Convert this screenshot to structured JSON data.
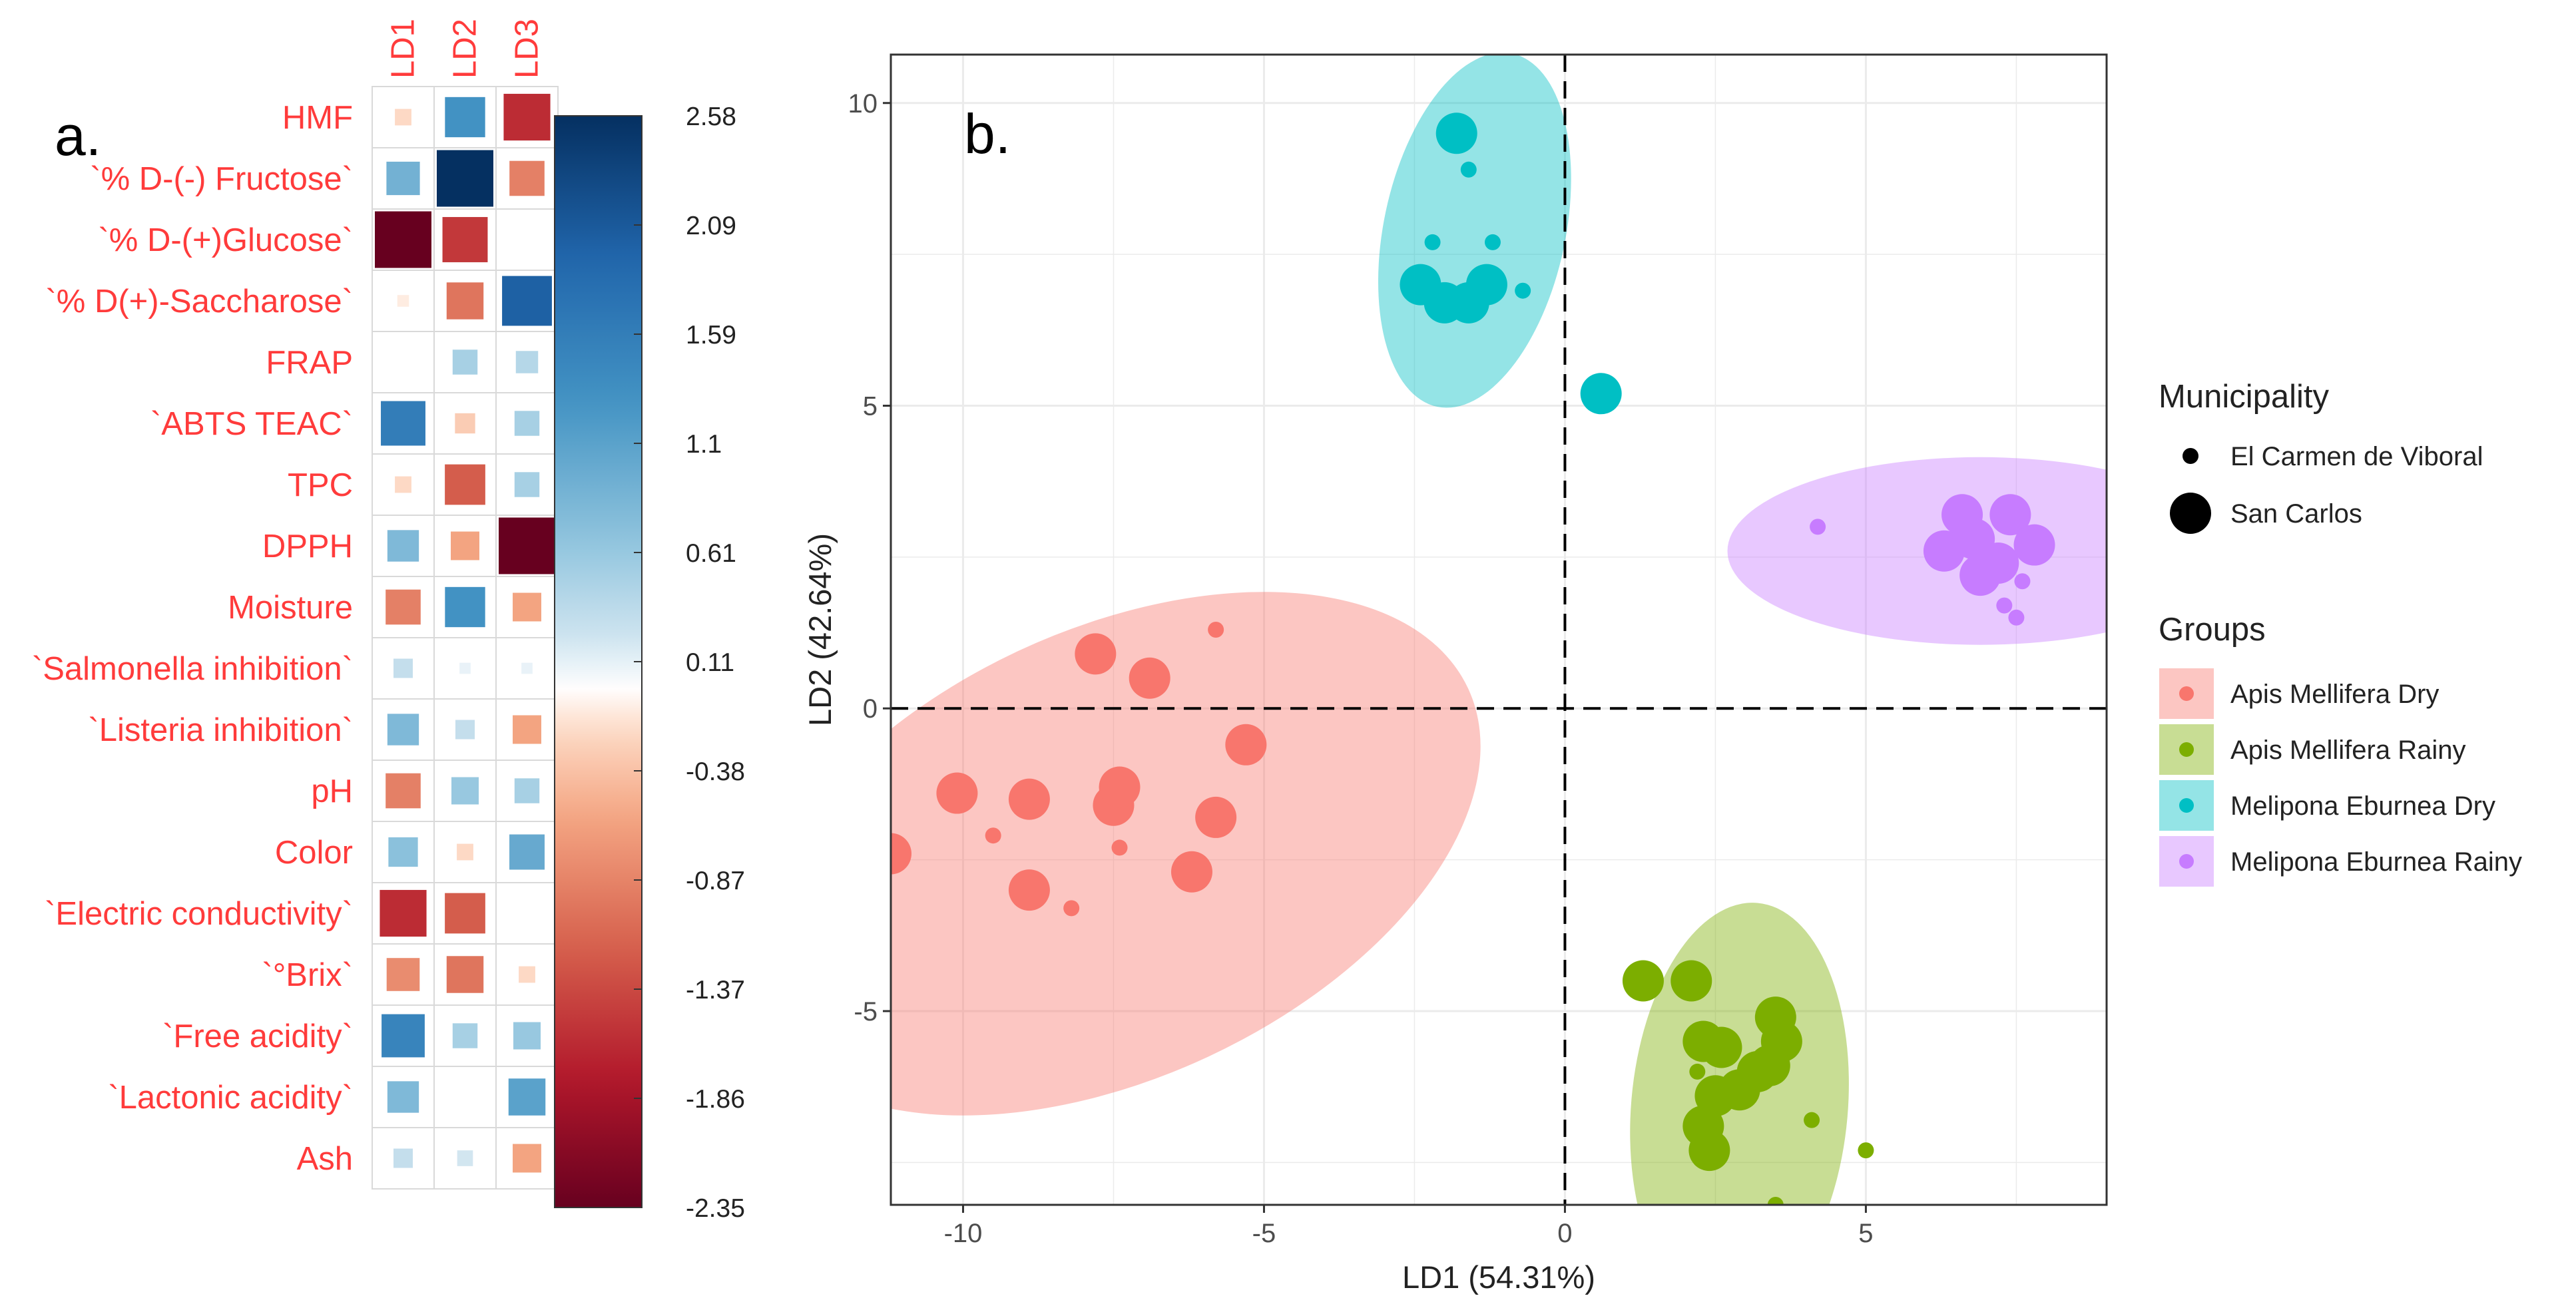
{
  "chart_data": [
    {
      "type": "heatmap",
      "panel_label": "a.",
      "columns": [
        "LD1",
        "LD2",
        "LD3"
      ],
      "rows": [
        "HMF",
        "`% D-(-) Fructose`",
        "`% D-(+)Glucose`",
        "`% D(+)-Saccharose`",
        "FRAP",
        "`ABTS TEAC`",
        "TPC",
        "DPPH",
        "Moisture",
        "`Salmonella inhibition`",
        "`Listeria inhibition`",
        "pH",
        "Color",
        "`Electric conductivity`",
        "`°Brix`",
        "`Free acidity`",
        "`Lactonic acidity`",
        "Ash"
      ],
      "values": [
        [
          -0.2,
          1.3,
          -1.6
        ],
        [
          0.9,
          2.58,
          -0.9
        ],
        [
          -2.35,
          -1.5,
          0.0
        ],
        [
          -0.1,
          -1.0,
          2.0
        ],
        [
          0.0,
          0.5,
          0.4
        ],
        [
          1.6,
          -0.3,
          0.5
        ],
        [
          -0.2,
          -1.2,
          0.5
        ],
        [
          0.8,
          -0.6,
          -2.35
        ],
        [
          -0.9,
          1.3,
          -0.6
        ],
        [
          0.3,
          0.1,
          0.1
        ],
        [
          0.8,
          0.3,
          -0.6
        ],
        [
          -0.9,
          0.6,
          0.5
        ],
        [
          0.7,
          -0.2,
          1.0
        ],
        [
          -1.6,
          -1.2,
          0.0
        ],
        [
          -0.8,
          -1.0,
          -0.2
        ],
        [
          1.5,
          0.5,
          0.6
        ],
        [
          0.8,
          0.0,
          1.1
        ],
        [
          0.3,
          0.2,
          -0.6
        ]
      ],
      "colorbar_ticks": [
        "2.58",
        "2.09",
        "1.59",
        "1.1",
        "0.61",
        "0.11",
        "-0.38",
        "-0.87",
        "-1.37",
        "-1.86",
        "-2.35"
      ],
      "scale_range": [
        -2.35,
        2.58
      ]
    },
    {
      "type": "scatter",
      "panel_label": "b.",
      "xlabel": "LD1 (54.31%)",
      "ylabel": "LD2 (42.64%)",
      "xlim": [
        -11.2,
        9.0
      ],
      "ylim": [
        -8.2,
        10.8
      ],
      "xticks": [
        -10,
        -5,
        0,
        5
      ],
      "yticks": [
        -5,
        0,
        5,
        10
      ],
      "grid": true,
      "reference_lines": {
        "x": 0,
        "y": 0
      },
      "legend_placement": "right",
      "municipality_legend": {
        "title": "Municipality",
        "items": [
          {
            "label": "El Carmen de Viboral",
            "size": "small"
          },
          {
            "label": "San Carlos",
            "size": "large"
          }
        ]
      },
      "groups_legend": {
        "title": "Groups",
        "items": [
          {
            "label": "Apis Mellifera Dry",
            "color": "#F8766D"
          },
          {
            "label": "Apis Mellifera Rainy",
            "color": "#7CAE00"
          },
          {
            "label": "Melipona Eburnea Dry",
            "color": "#00BFC4"
          },
          {
            "label": "Melipona Eburnea Rainy",
            "color": "#C77CFF"
          }
        ]
      },
      "series": [
        {
          "name": "Apis Mellifera Dry",
          "color": "#F8766D",
          "ellipse": {
            "cx": -7.5,
            "cy": -2.4,
            "rx": 6.5,
            "ry": 3.7,
            "angle_deg": -25
          },
          "points": [
            {
              "x": -11.2,
              "y": -2.4,
              "municipality": "San Carlos"
            },
            {
              "x": -10.1,
              "y": -1.4,
              "municipality": "San Carlos"
            },
            {
              "x": -9.5,
              "y": -2.1,
              "municipality": "El Carmen de Viboral"
            },
            {
              "x": -8.9,
              "y": -1.5,
              "municipality": "San Carlos"
            },
            {
              "x": -8.9,
              "y": -3.0,
              "municipality": "San Carlos"
            },
            {
              "x": -8.2,
              "y": -3.3,
              "municipality": "El Carmen de Viboral"
            },
            {
              "x": -7.8,
              "y": 0.9,
              "municipality": "San Carlos"
            },
            {
              "x": -7.5,
              "y": -1.6,
              "municipality": "San Carlos"
            },
            {
              "x": -7.4,
              "y": -1.3,
              "municipality": "San Carlos"
            },
            {
              "x": -7.4,
              "y": -2.3,
              "municipality": "El Carmen de Viboral"
            },
            {
              "x": -6.9,
              "y": 0.5,
              "municipality": "San Carlos"
            },
            {
              "x": -6.2,
              "y": -2.7,
              "municipality": "San Carlos"
            },
            {
              "x": -5.8,
              "y": -1.8,
              "municipality": "San Carlos"
            },
            {
              "x": -5.8,
              "y": 1.3,
              "municipality": "El Carmen de Viboral"
            },
            {
              "x": -5.3,
              "y": -0.6,
              "municipality": "San Carlos"
            }
          ]
        },
        {
          "name": "Apis Mellifera Rainy",
          "color": "#7CAE00",
          "ellipse": {
            "cx": 2.9,
            "cy": -6.6,
            "rx": 1.8,
            "ry": 3.4,
            "angle_deg": 5
          },
          "points": [
            {
              "x": 1.3,
              "y": -4.5,
              "municipality": "San Carlos"
            },
            {
              "x": 2.1,
              "y": -4.5,
              "municipality": "San Carlos"
            },
            {
              "x": 2.3,
              "y": -5.5,
              "municipality": "San Carlos"
            },
            {
              "x": 2.6,
              "y": -5.6,
              "municipality": "San Carlos"
            },
            {
              "x": 2.2,
              "y": -6.0,
              "municipality": "El Carmen de Viboral"
            },
            {
              "x": 2.5,
              "y": -6.4,
              "municipality": "San Carlos"
            },
            {
              "x": 2.9,
              "y": -6.3,
              "municipality": "San Carlos"
            },
            {
              "x": 2.3,
              "y": -6.9,
              "municipality": "San Carlos"
            },
            {
              "x": 2.4,
              "y": -7.3,
              "municipality": "San Carlos"
            },
            {
              "x": 3.2,
              "y": -6.0,
              "municipality": "San Carlos"
            },
            {
              "x": 3.5,
              "y": -5.1,
              "municipality": "San Carlos"
            },
            {
              "x": 3.6,
              "y": -5.5,
              "municipality": "San Carlos"
            },
            {
              "x": 3.4,
              "y": -5.9,
              "municipality": "San Carlos"
            },
            {
              "x": 4.1,
              "y": -6.8,
              "municipality": "El Carmen de Viboral"
            },
            {
              "x": 5.0,
              "y": -7.3,
              "municipality": "El Carmen de Viboral"
            },
            {
              "x": 3.5,
              "y": -8.2,
              "municipality": "El Carmen de Viboral"
            }
          ]
        },
        {
          "name": "Melipona Eburnea Dry",
          "color": "#00BFC4",
          "ellipse": {
            "cx": -1.5,
            "cy": 7.9,
            "rx": 3.0,
            "ry": 1.5,
            "angle_deg": -78
          },
          "points": [
            {
              "x": -1.8,
              "y": 9.5,
              "municipality": "San Carlos"
            },
            {
              "x": -1.6,
              "y": 8.9,
              "municipality": "El Carmen de Viboral"
            },
            {
              "x": -2.2,
              "y": 7.7,
              "municipality": "El Carmen de Viboral"
            },
            {
              "x": -1.2,
              "y": 7.7,
              "municipality": "El Carmen de Viboral"
            },
            {
              "x": -2.4,
              "y": 7.0,
              "municipality": "San Carlos"
            },
            {
              "x": -2.0,
              "y": 6.7,
              "municipality": "San Carlos"
            },
            {
              "x": -1.6,
              "y": 6.7,
              "municipality": "San Carlos"
            },
            {
              "x": -1.3,
              "y": 7.0,
              "municipality": "San Carlos"
            },
            {
              "x": -0.7,
              "y": 6.9,
              "municipality": "El Carmen de Viboral"
            },
            {
              "x": 0.6,
              "y": 5.2,
              "municipality": "San Carlos"
            }
          ]
        },
        {
          "name": "Melipona Eburnea Rainy",
          "color": "#C77CFF",
          "ellipse": {
            "cx": 6.9,
            "cy": 2.6,
            "rx": 4.2,
            "ry": 1.55,
            "angle_deg": 0
          },
          "points": [
            {
              "x": 4.2,
              "y": 3.0,
              "municipality": "El Carmen de Viboral"
            },
            {
              "x": 6.6,
              "y": 3.2,
              "municipality": "San Carlos"
            },
            {
              "x": 7.4,
              "y": 3.2,
              "municipality": "San Carlos"
            },
            {
              "x": 6.3,
              "y": 2.6,
              "municipality": "San Carlos"
            },
            {
              "x": 6.8,
              "y": 2.8,
              "municipality": "San Carlos"
            },
            {
              "x": 7.2,
              "y": 2.4,
              "municipality": "San Carlos"
            },
            {
              "x": 7.8,
              "y": 2.7,
              "municipality": "San Carlos"
            },
            {
              "x": 6.9,
              "y": 2.2,
              "municipality": "San Carlos"
            },
            {
              "x": 7.6,
              "y": 2.1,
              "municipality": "El Carmen de Viboral"
            },
            {
              "x": 7.3,
              "y": 1.7,
              "municipality": "El Carmen de Viboral"
            },
            {
              "x": 7.5,
              "y": 1.5,
              "municipality": "El Carmen de Viboral"
            }
          ]
        }
      ]
    }
  ]
}
